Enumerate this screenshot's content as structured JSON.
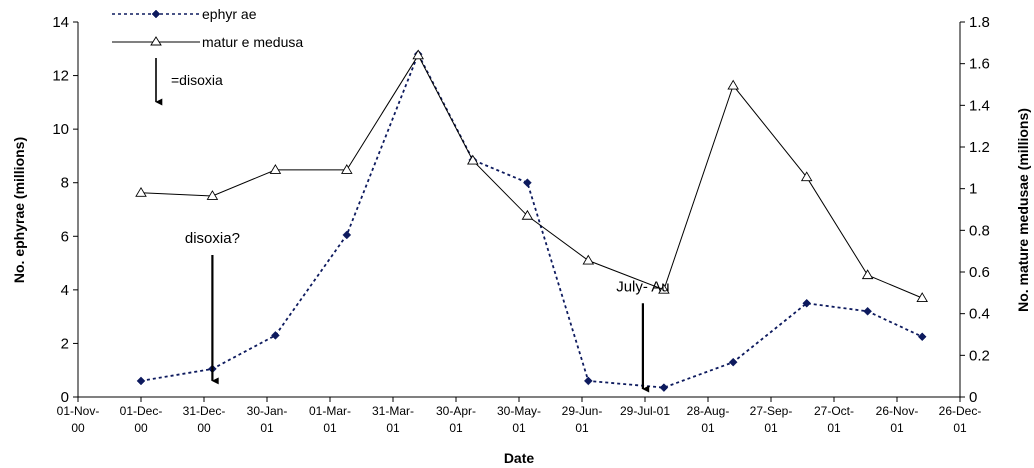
{
  "chart_data": {
    "type": "line",
    "x_label": "Date",
    "y_label_left": "No. ephyrae (millions)",
    "y_label_right": "No. mature medusae (millions)",
    "y_left_lim": [
      0,
      14
    ],
    "y_left_ticks": [
      0,
      2,
      4,
      6,
      8,
      10,
      12,
      14
    ],
    "y_right_lim": [
      0,
      1.8
    ],
    "y_right_ticks": [
      0,
      0.2,
      0.4,
      0.6,
      0.8,
      1,
      1.2,
      1.4,
      1.6,
      1.8
    ],
    "x_lim": [
      "2000-11-01",
      "2001-12-26"
    ],
    "x_ticks": [
      {
        "date": "2000-11-01",
        "line1": "01-Nov-",
        "line2": "00"
      },
      {
        "date": "2000-12-01",
        "line1": "01-Dec-",
        "line2": "00"
      },
      {
        "date": "2000-12-31",
        "line1": "31-Dec-",
        "line2": "00"
      },
      {
        "date": "2001-01-30",
        "line1": "30-Jan-",
        "line2": "01"
      },
      {
        "date": "2001-03-01",
        "line1": "01-Mar-",
        "line2": "01"
      },
      {
        "date": "2001-03-31",
        "line1": "31-Mar-",
        "line2": "01"
      },
      {
        "date": "2001-04-30",
        "line1": "30-Apr-",
        "line2": "01"
      },
      {
        "date": "2001-05-30",
        "line1": "30-May-",
        "line2": "01"
      },
      {
        "date": "2001-06-29",
        "line1": "29-Jun-",
        "line2": "01"
      },
      {
        "date": "2001-07-29",
        "line1": "29-Jul-01",
        "line2": ""
      },
      {
        "date": "2001-08-28",
        "line1": "28-Aug-",
        "line2": "01"
      },
      {
        "date": "2001-09-27",
        "line1": "27-Sep-",
        "line2": "01"
      },
      {
        "date": "2001-10-27",
        "line1": "27-Oct-",
        "line2": "01"
      },
      {
        "date": "2001-11-26",
        "line1": "26-Nov-",
        "line2": "01"
      },
      {
        "date": "2001-12-26",
        "line1": "26-Dec-",
        "line2": "01"
      }
    ],
    "series": [
      {
        "name": "ephyr ae",
        "axis": "left",
        "style": "dotted",
        "marker": "diamond",
        "color": "#0d1a5e",
        "points": [
          {
            "x": "2000-12-01",
            "y": 0.6
          },
          {
            "x": "2001-01-04",
            "y": 1.05
          },
          {
            "x": "2001-02-03",
            "y": 2.3
          },
          {
            "x": "2001-03-09",
            "y": 6.05
          },
          {
            "x": "2001-04-12",
            "y": 12.8
          },
          {
            "x": "2001-05-08",
            "y": 8.85
          },
          {
            "x": "2001-06-03",
            "y": 8.0
          },
          {
            "x": "2001-07-02",
            "y": 0.6
          },
          {
            "x": "2001-08-07",
            "y": 0.35
          },
          {
            "x": "2001-09-09",
            "y": 1.3
          },
          {
            "x": "2001-10-14",
            "y": 3.5
          },
          {
            "x": "2001-11-12",
            "y": 3.2
          },
          {
            "x": "2001-12-08",
            "y": 2.25
          }
        ]
      },
      {
        "name": "matur e medusa",
        "axis": "right",
        "style": "solid",
        "marker": "triangle",
        "color": "#000000",
        "points": [
          {
            "x": "2000-12-01",
            "y": 0.98
          },
          {
            "x": "2001-01-04",
            "y": 0.965
          },
          {
            "x": "2001-02-03",
            "y": 1.09
          },
          {
            "x": "2001-03-09",
            "y": 1.09
          },
          {
            "x": "2001-04-12",
            "y": 1.64
          },
          {
            "x": "2001-05-08",
            "y": 1.135
          },
          {
            "x": "2001-06-03",
            "y": 0.87
          },
          {
            "x": "2001-07-02",
            "y": 0.655
          },
          {
            "x": "2001-08-07",
            "y": 0.515
          },
          {
            "x": "2001-09-09",
            "y": 1.495
          },
          {
            "x": "2001-10-14",
            "y": 1.055
          },
          {
            "x": "2001-11-12",
            "y": 0.585
          },
          {
            "x": "2001-12-08",
            "y": 0.475
          }
        ]
      }
    ],
    "legend": {
      "placement": "top-left",
      "key_label": "=disoxia"
    },
    "annotations": [
      {
        "text": "disoxia?",
        "date": "2001-01-04",
        "y_from": 5.3,
        "y_to": 0.6
      },
      {
        "text": "July- Au",
        "date": "2001-07-28",
        "y_from": 3.5,
        "y_to": 0.3
      }
    ]
  }
}
